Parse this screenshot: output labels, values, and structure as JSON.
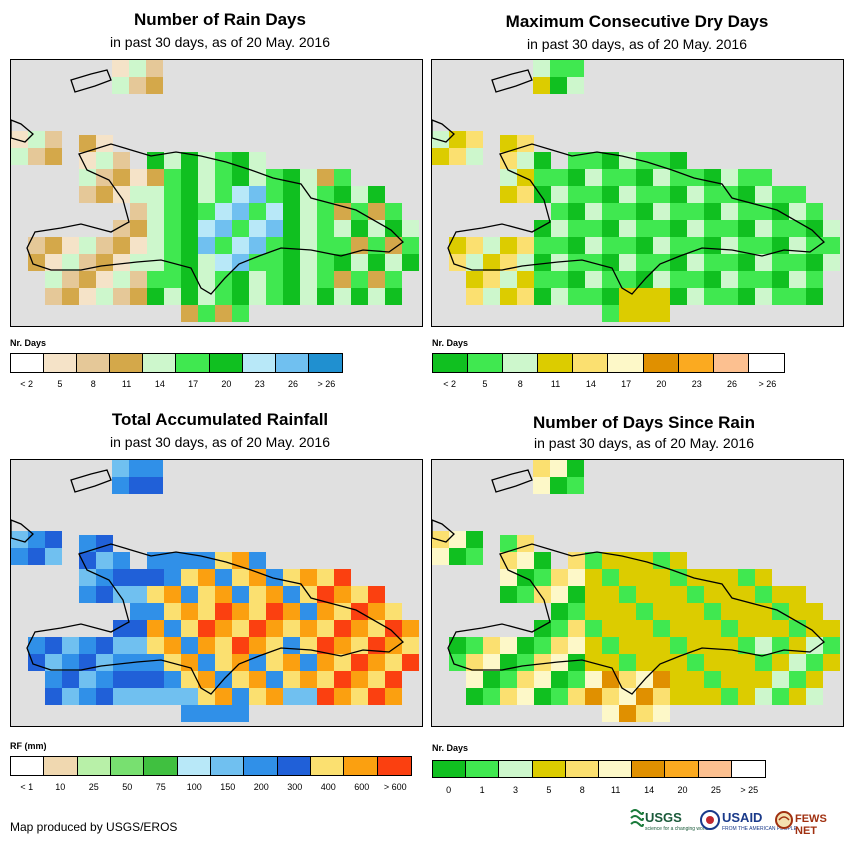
{
  "panels": [
    {
      "id": "rain-days",
      "title": "Number of Rain Days",
      "subtitle": "in past 30 days, as of 20 May. 2016",
      "legend_title": "Nr. Days",
      "legend_colors": [
        "#ffffff",
        "#f5e3c8",
        "#e5c898",
        "#d4a84a",
        "#cdf7cc",
        "#40e850",
        "#10c020",
        "#b8e8f8",
        "#70c0f0",
        "#2090d0"
      ],
      "legend_labels": [
        "< 2",
        "5",
        "8",
        "11",
        "14",
        "17",
        "20",
        "23",
        "26",
        "> 26"
      ],
      "theme": "rain"
    },
    {
      "id": "dry-days",
      "title": "Maximum Consecutive Dry Days",
      "subtitle": "in past 30 days, as of 20 May. 2016",
      "legend_title": "Nr. Days",
      "legend_colors": [
        "#10c020",
        "#40e850",
        "#cdf7cc",
        "#dccc00",
        "#fbe070",
        "#fdf8c8",
        "#e09000",
        "#fbaa20",
        "#fcc090",
        "#ffffff"
      ],
      "legend_labels": [
        "< 2",
        "5",
        "8",
        "11",
        "14",
        "17",
        "20",
        "23",
        "26",
        "> 26"
      ],
      "theme": "dry"
    },
    {
      "id": "rainfall",
      "title": "Total Accumulated Rainfall",
      "subtitle": "in past 30 days, as of 20 May. 2016",
      "legend_title": "RF (mm)",
      "legend_colors": [
        "#ffffff",
        "#f0d8b0",
        "#b8f0a8",
        "#78e070",
        "#40c040",
        "#b8e8f8",
        "#70c0f0",
        "#3090e8",
        "#2060d8",
        "#fbe070",
        "#fba010",
        "#fb4010"
      ],
      "legend_labels": [
        "< 1",
        "10",
        "25",
        "50",
        "75",
        "100",
        "150",
        "200",
        "300",
        "400",
        "600",
        "> 600"
      ],
      "theme": "rf"
    },
    {
      "id": "since-rain",
      "title": "Number of Days Since Rain",
      "subtitle": "in past 30 days, as of 20 May. 2016",
      "legend_title": "Nr. Days",
      "legend_colors": [
        "#10c020",
        "#40e850",
        "#cdf7cc",
        "#dccc00",
        "#fbe070",
        "#fdf8c8",
        "#e09000",
        "#fbaa20",
        "#fcc090",
        "#ffffff"
      ],
      "legend_labels": [
        "0",
        "1",
        "3",
        "5",
        "8",
        "11",
        "14",
        "20",
        "25",
        "> 25"
      ],
      "theme": "since"
    }
  ],
  "credit": "Map produced by USGS/EROS",
  "logos": {
    "usgs": "USGS",
    "usgs_tag": "science for a changing world",
    "usaid": "USAID",
    "usaid_tag": "FROM THE AMERICAN PEOPLE",
    "fews": "FEWS NET"
  }
}
